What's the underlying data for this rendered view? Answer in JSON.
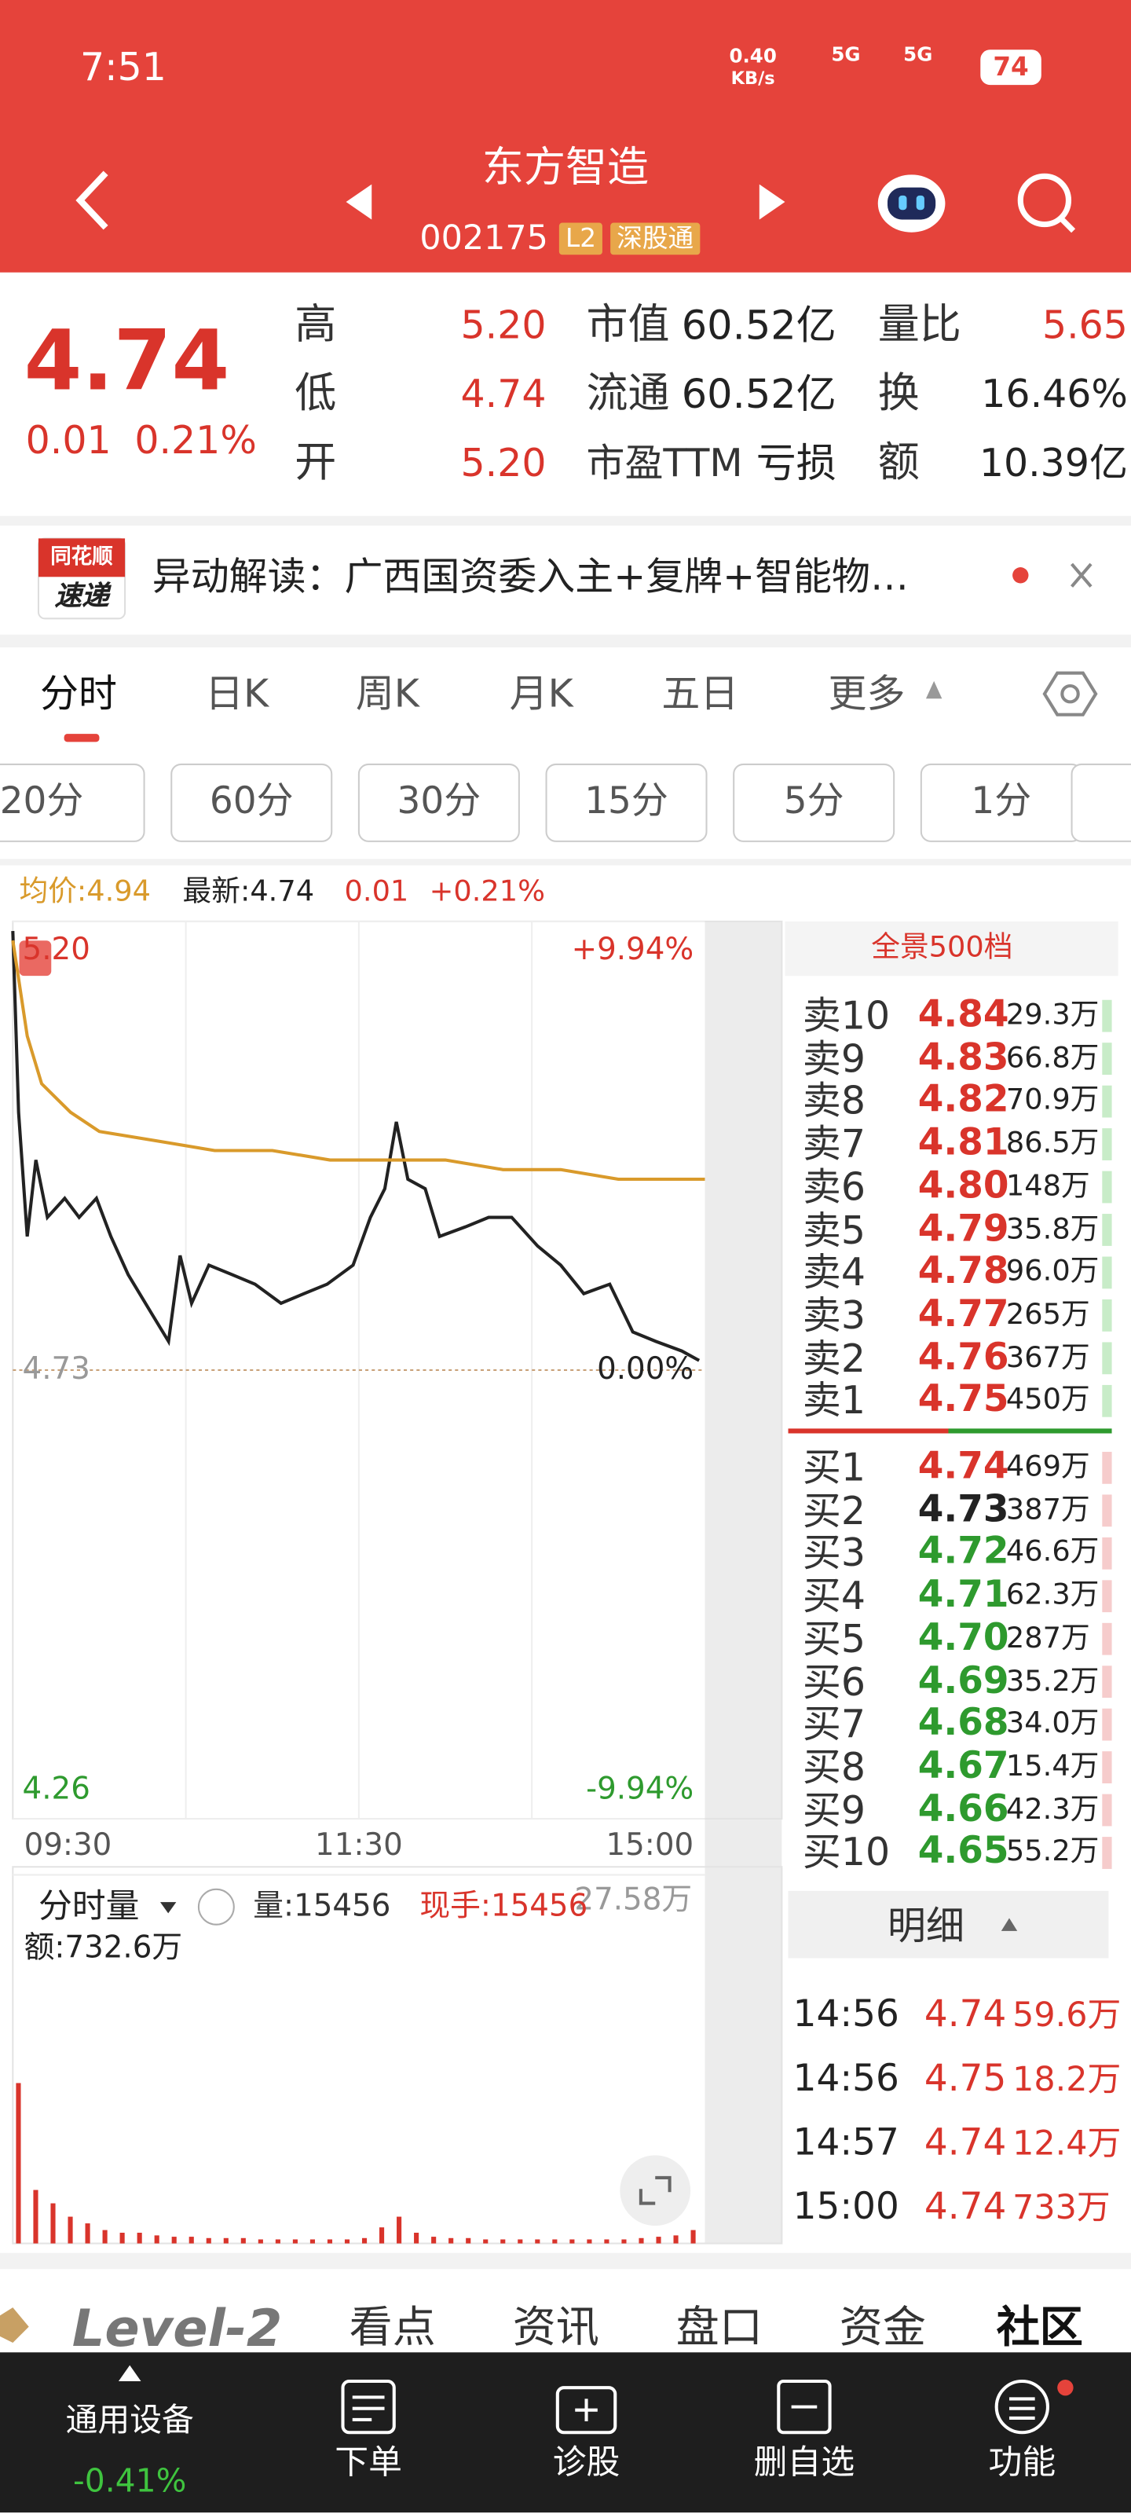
{
  "status": {
    "time": "7:51",
    "speed": "0.40",
    "speed_unit": "KB/s",
    "net1": "5G",
    "net2": "5G",
    "battery": "74"
  },
  "header": {
    "title": "东方智造",
    "code": "002175",
    "badge_l2": "L2",
    "badge_hk": "深股通"
  },
  "quote": {
    "price": "4.74",
    "change": "0.01",
    "change_pct": "0.21%",
    "stats": [
      [
        "高",
        "5.20",
        "市值",
        "60.52亿",
        "量比",
        "5.65"
      ],
      [
        "低",
        "4.74",
        "流通",
        "60.52亿",
        "换",
        "16.46%"
      ],
      [
        "开",
        "5.20",
        "市盈TTM",
        "亏损",
        "额",
        "10.39亿"
      ]
    ]
  },
  "news": {
    "logo_top": "同花顺",
    "logo_bottom": "速递",
    "text": "异动解读：广西国资委入主+复牌+智能物…"
  },
  "tabs": [
    "分时",
    "日K",
    "周K",
    "月K",
    "五日",
    "更多"
  ],
  "periods": [
    "20分",
    "60分",
    "30分",
    "15分",
    "5分",
    "1分"
  ],
  "info": {
    "avg": "均价:4.94",
    "latest": "最新:4.74",
    "change": "0.01",
    "pct": "+0.21%"
  },
  "chart_data": [
    {
      "type": "line",
      "xlim": [
        0,
        240
      ],
      "ylim": [
        4.26,
        5.2
      ],
      "yticks": [
        {
          "value": 5.2,
          "label": "5.20"
        },
        4.73,
        4.26
      ],
      "y2lim": [
        -9.94,
        9.94
      ],
      "y2ticks": [
        {
          "value": 9.94,
          "label": "+9.94%"
        },
        {
          "value": 0,
          "label": "0.00%"
        },
        {
          "value": -9.94,
          "label": "-9.94%"
        }
      ],
      "xticks": [
        {
          "value": 0,
          "label": "09:30"
        },
        {
          "value": 120,
          "label": "11:30"
        },
        {
          "value": 240,
          "label": "15:00"
        }
      ],
      "series": [
        {
          "name": "最新",
          "color": "#222222",
          "x": [
            0,
            2,
            5,
            8,
            12,
            18,
            23,
            29,
            34,
            40,
            48,
            54,
            58,
            62,
            68,
            76,
            84,
            93,
            101,
            109,
            118,
            124,
            129,
            133,
            137,
            143,
            148,
            157,
            165,
            173,
            182,
            190,
            198,
            207,
            215,
            223,
            232,
            238
          ],
          "values": [
            5.19,
            5.0,
            4.87,
            4.95,
            4.89,
            4.91,
            4.89,
            4.91,
            4.87,
            4.83,
            4.79,
            4.76,
            4.85,
            4.8,
            4.84,
            4.83,
            4.82,
            4.8,
            4.81,
            4.82,
            4.84,
            4.89,
            4.92,
            4.99,
            4.93,
            4.92,
            4.87,
            4.88,
            4.89,
            4.89,
            4.86,
            4.84,
            4.81,
            4.82,
            4.77,
            4.76,
            4.75,
            4.74
          ]
        },
        {
          "name": "均价",
          "color": "#d99a2b",
          "x": [
            0,
            5,
            10,
            20,
            30,
            50,
            70,
            90,
            110,
            130,
            150,
            170,
            190,
            210,
            240
          ],
          "values": [
            5.18,
            5.08,
            5.03,
            5.0,
            4.98,
            4.97,
            4.96,
            4.96,
            4.95,
            4.95,
            4.95,
            4.94,
            4.94,
            4.93,
            4.93
          ]
        }
      ]
    },
    {
      "type": "bar",
      "title": "分时量",
      "volume": "量:15456",
      "hand": "现手:15456",
      "amount": "额:732.6万",
      "color": "#d9342b",
      "xlim": [
        0,
        240
      ],
      "ylim": [
        0,
        27.58
      ],
      "yticks": [
        {
          "value": 27.58,
          "label": "27.58万"
        }
      ],
      "x": [
        0,
        6,
        12,
        18,
        24,
        30,
        36,
        42,
        48,
        54,
        60,
        66,
        72,
        78,
        84,
        90,
        96,
        102,
        108,
        114,
        120,
        126,
        132,
        138,
        144,
        150,
        156,
        162,
        168,
        174,
        180,
        186,
        192,
        198,
        204,
        210,
        216,
        222,
        228,
        234
      ],
      "values": [
        12,
        4,
        3,
        2,
        1.5,
        1,
        0.8,
        0.8,
        0.6,
        0.5,
        0.5,
        0.4,
        0.4,
        0.4,
        0.3,
        0.3,
        0.3,
        0.3,
        0.3,
        0.3,
        0.4,
        1.2,
        2,
        0.8,
        0.5,
        0.4,
        0.4,
        0.3,
        0.3,
        0.3,
        0.3,
        0.3,
        0.3,
        0.3,
        0.3,
        0.3,
        0.4,
        0.5,
        0.6,
        1
      ]
    }
  ],
  "orderbook": {
    "title": "全景500档",
    "sell": [
      [
        "卖10",
        "4.84",
        "29.3万"
      ],
      [
        "卖9",
        "4.83",
        "66.8万"
      ],
      [
        "卖8",
        "4.82",
        "70.9万"
      ],
      [
        "卖7",
        "4.81",
        "86.5万"
      ],
      [
        "卖6",
        "4.80",
        "148万"
      ],
      [
        "卖5",
        "4.79",
        "35.8万"
      ],
      [
        "卖4",
        "4.78",
        "96.0万"
      ],
      [
        "卖3",
        "4.77",
        "265万"
      ],
      [
        "卖2",
        "4.76",
        "367万"
      ],
      [
        "卖1",
        "4.75",
        "450万"
      ]
    ],
    "buy": [
      [
        "买1",
        "4.74",
        "469万"
      ],
      [
        "买2",
        "4.73",
        "387万"
      ],
      [
        "买3",
        "4.72",
        "46.6万"
      ],
      [
        "买4",
        "4.71",
        "62.3万"
      ],
      [
        "买5",
        "4.70",
        "287万"
      ],
      [
        "买6",
        "4.69",
        "35.2万"
      ],
      [
        "买7",
        "4.68",
        "34.0万"
      ],
      [
        "买8",
        "4.67",
        "15.4万"
      ],
      [
        "买9",
        "4.66",
        "42.3万"
      ],
      [
        "买10",
        "4.65",
        "55.2万"
      ]
    ]
  },
  "detail": {
    "title": "明细",
    "rows": [
      [
        "14:56",
        "4.74",
        "59.6万"
      ],
      [
        "14:56",
        "4.75",
        "18.2万"
      ],
      [
        "14:57",
        "4.74",
        "12.4万"
      ],
      [
        "15:00",
        "4.74",
        "733万"
      ]
    ]
  },
  "bottom_tabs": [
    "Level-2",
    "看点",
    "资讯",
    "盘口",
    "资金",
    "社区"
  ],
  "nav": {
    "sector": "通用设备",
    "sector_pct": "-0.41%",
    "items": [
      "下单",
      "诊股",
      "删自选",
      "功能"
    ]
  }
}
